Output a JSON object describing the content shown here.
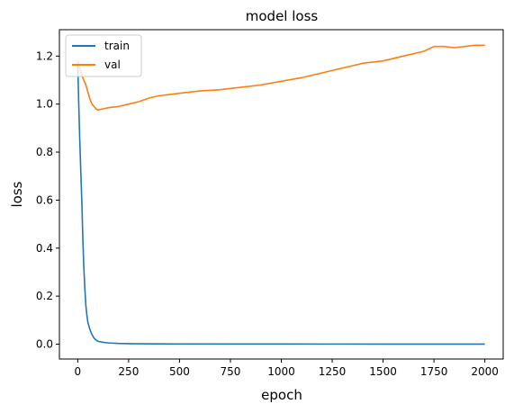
{
  "chart_data": {
    "type": "line",
    "title": "model loss",
    "xlabel": "epoch",
    "ylabel": "loss",
    "xlim": [
      -90,
      2090
    ],
    "ylim": [
      -0.062,
      1.31
    ],
    "xticks": [
      0,
      250,
      500,
      750,
      1000,
      1250,
      1500,
      1750,
      2000
    ],
    "yticks": [
      0.0,
      0.2,
      0.4,
      0.6,
      0.8,
      1.0,
      1.2
    ],
    "ytick_labels": [
      "0.0",
      "0.2",
      "0.4",
      "0.6",
      "0.8",
      "1.0",
      "1.2"
    ],
    "grid": false,
    "legend": "upper left",
    "series": [
      {
        "name": "train",
        "color": "#1f77b4",
        "x": [
          0,
          5,
          10,
          15,
          20,
          25,
          30,
          35,
          40,
          45,
          50,
          60,
          70,
          80,
          90,
          100,
          120,
          150,
          200,
          250,
          300,
          400,
          500,
          750,
          1000,
          1250,
          1500,
          1750,
          2000
        ],
        "y": [
          1.17,
          1.0,
          0.85,
          0.72,
          0.6,
          0.44,
          0.32,
          0.23,
          0.16,
          0.12,
          0.09,
          0.06,
          0.04,
          0.025,
          0.017,
          0.012,
          0.008,
          0.005,
          0.003,
          0.002,
          0.0015,
          0.001,
          0.0008,
          0.0005,
          0.0004,
          0.0003,
          0.0002,
          0.0002,
          0.0001
        ]
      },
      {
        "name": "val",
        "color": "#ff7f0e",
        "x": [
          0,
          10,
          20,
          30,
          40,
          50,
          60,
          70,
          80,
          90,
          100,
          110,
          125,
          150,
          200,
          250,
          300,
          350,
          400,
          450,
          500,
          600,
          700,
          800,
          900,
          1000,
          1100,
          1200,
          1300,
          1400,
          1500,
          1600,
          1700,
          1750,
          1800,
          1850,
          1900,
          1950,
          2000
        ],
        "y": [
          1.18,
          1.15,
          1.12,
          1.1,
          1.08,
          1.05,
          1.02,
          1.0,
          0.99,
          0.98,
          0.975,
          0.978,
          0.98,
          0.985,
          0.99,
          1.0,
          1.01,
          1.025,
          1.035,
          1.04,
          1.045,
          1.055,
          1.06,
          1.07,
          1.08,
          1.095,
          1.11,
          1.13,
          1.15,
          1.17,
          1.18,
          1.2,
          1.22,
          1.24,
          1.24,
          1.235,
          1.24,
          1.245,
          1.245
        ]
      }
    ]
  }
}
